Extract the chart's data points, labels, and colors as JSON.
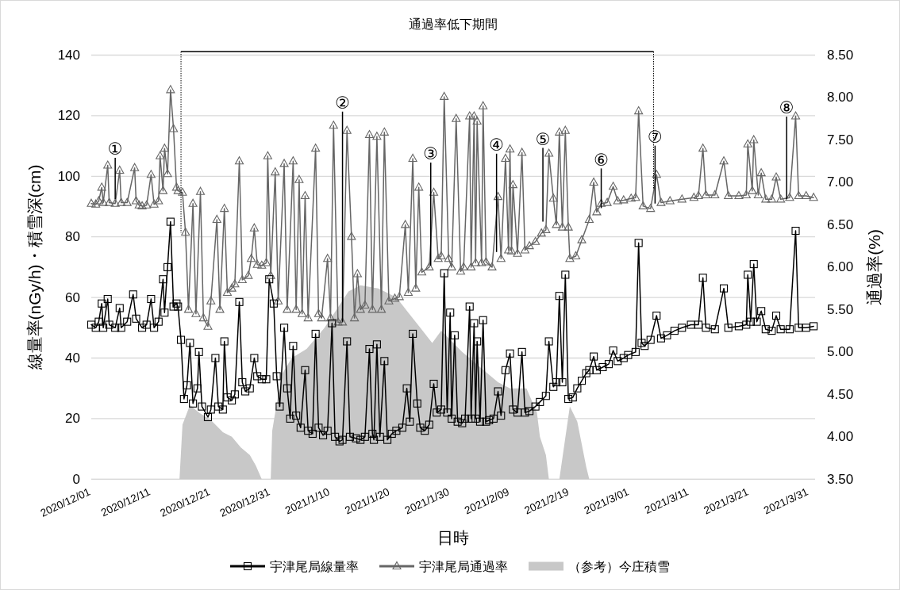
{
  "chart_data": {
    "type": "line",
    "title": "通過率低下期間",
    "xlabel": "日時",
    "ylabel": "線量率(nGy/h)・積雪深(cm)",
    "y2label": "通過率(%)",
    "xlim": [
      "2020-12-01",
      "2021-04-01"
    ],
    "xticks": [
      {
        "value": "2020-12-01",
        "label": "2020/12/01"
      },
      {
        "value": "2020-12-11",
        "label": "2020/12/11"
      },
      {
        "value": "2020-12-21",
        "label": "2020/12/21"
      },
      {
        "value": "2020-12-31",
        "label": "2020/12/31"
      },
      {
        "value": "2021-01-10",
        "label": "2021/1/10"
      },
      {
        "value": "2021-01-20",
        "label": "2021/1/20"
      },
      {
        "value": "2021-01-30",
        "label": "2021/1/30"
      },
      {
        "value": "2021-02-09",
        "label": "2021/2/09"
      },
      {
        "value": "2021-02-19",
        "label": "2021/2/19"
      },
      {
        "value": "2021-03-01",
        "label": "2021/3/01"
      },
      {
        "value": "2021-03-11",
        "label": "2021/3/11"
      },
      {
        "value": "2021-03-21",
        "label": "2021/3/21"
      },
      {
        "value": "2021-03-31",
        "label": "2021/3/31"
      }
    ],
    "ylim": [
      0,
      140
    ],
    "yticks": [
      0,
      20,
      40,
      60,
      80,
      100,
      120,
      140
    ],
    "y2lim": [
      3.5,
      8.5
    ],
    "y2ticks": [
      {
        "value": 3.5,
        "label": "3.50"
      },
      {
        "value": 4,
        "label": "4.00"
      },
      {
        "value": 4.5,
        "label": "4.50"
      },
      {
        "value": 5,
        "label": "5.00"
      },
      {
        "value": 5.5,
        "label": "5.50"
      },
      {
        "value": 6,
        "label": "6.00"
      },
      {
        "value": 6.5,
        "label": "6.50"
      },
      {
        "value": 7,
        "label": "7.00"
      },
      {
        "value": 7.5,
        "label": "7.50"
      },
      {
        "value": 8,
        "label": "8.00"
      },
      {
        "value": 8.5,
        "label": "8.50"
      }
    ],
    "grid": "y",
    "legend": "bottom",
    "series": [
      {
        "name": "宇津尾局線量率",
        "type": "line",
        "color": "#000000",
        "marker": "square",
        "x": [
          "2020-12-01T00:00",
          "2020-12-01T18:00",
          "2020-12-02T06:00",
          "2020-12-02T18:00",
          "2020-12-03T00:00",
          "2020-12-03T18:00",
          "2020-12-04T00:00",
          "2020-12-05T00:00",
          "2020-12-05T18:00",
          "2020-12-06T00:00",
          "2020-12-07T00:00",
          "2020-12-08T00:00",
          "2020-12-08T12:00",
          "2020-12-09T12:00",
          "2020-12-10T06:00",
          "2020-12-11T00:00",
          "2020-12-11T12:00",
          "2020-12-12T06:00",
          "2020-12-13T00:00",
          "2020-12-13T06:00",
          "2020-12-13T18:00",
          "2020-12-14T06:00",
          "2020-12-14T18:00",
          "2020-12-15T06:00",
          "2020-12-15T12:00",
          "2020-12-16T00:00",
          "2020-12-16T12:00",
          "2020-12-17T00:00",
          "2020-12-17T12:00",
          "2020-12-18T00:00",
          "2020-12-18T18:00",
          "2020-12-19T00:00",
          "2020-12-19T12:00",
          "2020-12-20T12:00",
          "2020-12-21T00:00",
          "2020-12-21T18:00",
          "2020-12-22T06:00",
          "2020-12-23T00:00",
          "2020-12-23T06:00",
          "2020-12-23T18:00",
          "2020-12-24T12:00",
          "2020-12-25T00:00",
          "2020-12-25T18:00",
          "2020-12-26T06:00",
          "2020-12-26T18:00",
          "2020-12-27T12:00",
          "2020-12-28T06:00",
          "2020-12-28T18:00",
          "2020-12-29T12:00",
          "2020-12-30T06:00",
          "2020-12-30T18:00",
          "2020-12-31T12:00",
          "2021-01-01T00:00",
          "2021-01-01T12:00",
          "2021-01-02T06:00",
          "2021-01-02T18:00",
          "2021-01-03T06:00",
          "2021-01-03T18:00",
          "2021-01-04T06:00",
          "2021-01-05T00:00",
          "2021-01-05T18:00",
          "2021-01-06T06:00",
          "2021-01-07T00:00",
          "2021-01-07T12:00",
          "2021-01-08T00:00",
          "2021-01-08T18:00",
          "2021-01-09T12:00",
          "2021-01-10T06:00",
          "2021-01-10T18:00",
          "2021-01-11T12:00",
          "2021-01-12T00:00",
          "2021-01-12T18:00",
          "2021-01-13T06:00",
          "2021-01-14T06:00",
          "2021-01-15T00:00",
          "2021-01-15T18:00",
          "2021-01-16T12:00",
          "2021-01-17T00:00",
          "2021-01-17T06:00",
          "2021-01-17T18:00",
          "2021-01-18T06:00",
          "2021-01-19T00:00",
          "2021-01-19T12:00",
          "2021-01-20T06:00",
          "2021-01-21T00:00",
          "2021-01-22T00:00",
          "2021-01-22T18:00",
          "2021-01-23T06:00",
          "2021-01-23T18:00",
          "2021-01-24T12:00",
          "2021-01-25T00:00",
          "2021-01-25T18:00",
          "2021-01-26T12:00",
          "2021-01-27T06:00",
          "2021-01-27T18:00",
          "2021-01-28T12:00",
          "2021-01-29T00:00",
          "2021-01-29T12:00",
          "2021-01-30T00:00",
          "2021-01-30T06:00",
          "2021-01-30T18:00",
          "2021-01-31T06:00",
          "2021-02-01T00:00",
          "2021-02-01T12:00",
          "2021-02-02T06:00",
          "2021-02-02T12:00",
          "2021-02-03T00:00",
          "2021-02-03T06:00",
          "2021-02-03T12:00",
          "2021-02-04T00:00",
          "2021-02-04T12:00",
          "2021-02-05T00:00",
          "2021-02-05T12:00",
          "2021-02-06T06:00",
          "2021-02-07T00:00",
          "2021-02-07T12:00",
          "2021-02-08T06:00",
          "2021-02-09T00:00",
          "2021-02-09T12:00",
          "2021-02-10T06:00",
          "2021-02-11T00:00",
          "2021-02-11T12:00",
          "2021-02-12T06:00",
          "2021-02-13T06:00",
          "2021-02-14T00:00",
          "2021-02-15T00:00",
          "2021-02-15T12:00",
          "2021-02-16T06:00",
          "2021-02-16T18:00",
          "2021-02-17T06:00",
          "2021-02-17T18:00",
          "2021-02-18T06:00",
          "2021-02-18T18:00",
          "2021-02-19T12:00",
          "2021-02-20T06:00",
          "2021-02-21T00:00",
          "2021-02-21T18:00",
          "2021-02-22T06:00",
          "2021-02-23T00:00",
          "2021-02-23T12:00",
          "2021-02-24T12:00",
          "2021-02-25T12:00",
          "2021-02-26T06:00",
          "2021-02-27T00:00",
          "2021-02-28T00:00",
          "2021-02-28T18:00",
          "2021-03-02T00:00",
          "2021-03-02T12:00",
          "2021-03-03T00:00",
          "2021-03-03T12:00",
          "2021-03-04T12:00",
          "2021-03-05T12:00",
          "2021-03-06T06:00",
          "2021-03-07T06:00",
          "2021-03-08T12:00",
          "2021-03-09T18:00",
          "2021-03-11T06:00",
          "2021-03-12T12:00",
          "2021-03-13T06:00",
          "2021-03-13T18:00",
          "2021-03-15T06:00",
          "2021-03-16T18:00",
          "2021-03-17T12:00",
          "2021-03-19T06:00",
          "2021-03-20T12:00",
          "2021-03-20T18:00",
          "2021-03-21T06:00",
          "2021-03-21T18:00",
          "2021-03-22T06:00",
          "2021-03-23T00:00",
          "2021-03-23T18:00",
          "2021-03-24T18:00",
          "2021-03-25T12:00",
          "2021-03-26T06:00",
          "2021-03-27T18:00",
          "2021-03-28T18:00",
          "2021-03-29T06:00",
          "2021-03-30T12:00",
          "2021-03-31T18:00"
        ],
        "values": [
          51,
          50,
          52,
          58,
          50,
          59.5,
          51,
          50,
          56.5,
          50,
          52,
          61,
          53,
          50,
          51,
          59.5,
          50,
          52,
          66,
          55,
          70,
          85,
          57,
          58,
          57,
          46,
          26.5,
          31,
          45,
          25,
          30,
          42,
          24,
          20.5,
          23,
          40,
          24,
          23,
          45.5,
          27,
          26,
          28,
          58.5,
          32,
          29,
          30,
          40,
          34,
          33,
          33,
          66,
          58,
          34,
          24,
          50,
          30,
          20,
          44,
          21,
          17,
          36,
          16,
          15,
          48,
          17,
          14.5,
          16,
          51.5,
          14,
          12.5,
          13,
          45.5,
          14,
          13.5,
          13,
          14,
          43,
          15,
          13,
          44.5,
          14,
          39,
          13,
          15,
          16,
          17,
          30,
          19,
          48,
          25,
          17,
          16,
          18,
          31.5,
          22,
          23,
          68,
          22,
          55,
          20,
          47.5,
          19,
          18.5,
          20,
          57,
          20,
          51.5,
          20,
          45.5,
          19,
          52.5,
          19,
          19.5,
          20,
          29,
          21,
          36,
          41.5,
          23,
          22,
          42,
          22,
          22.5,
          24,
          25.5,
          27.5,
          45.5,
          30.5,
          32,
          60.5,
          32,
          67.5,
          26.5,
          27,
          30,
          32.5,
          35,
          36,
          40.5,
          36,
          37,
          38,
          42.5,
          39,
          40,
          41,
          42,
          78,
          45,
          44,
          46,
          54,
          46.5,
          47.5,
          49,
          50,
          51,
          51,
          66.5,
          50,
          49.5,
          63,
          50,
          50.5,
          51,
          67.5,
          52,
          71,
          52,
          55.5,
          49.5,
          49,
          54,
          49.5,
          49.5,
          82,
          50,
          50,
          50.5
        ]
      },
      {
        "name": "宇津尾局通過率",
        "type": "line",
        "color": "#666666",
        "marker": "triangle",
        "axis": "y2",
        "x": [
          "2020-12-01T00:00",
          "2020-12-01T18:00",
          "2020-12-02T06:00",
          "2020-12-02T18:00",
          "2020-12-03T00:00",
          "2020-12-03T18:00",
          "2020-12-04T00:00",
          "2020-12-05T00:00",
          "2020-12-05T18:00",
          "2020-12-06T00:00",
          "2020-12-07T00:00",
          "2020-12-08T06:00",
          "2020-12-08T12:00",
          "2020-12-09T00:00",
          "2020-12-09T12:00",
          "2020-12-10T06:00",
          "2020-12-11T00:00",
          "2020-12-11T12:00",
          "2020-12-12T06:00",
          "2020-12-12T12:00",
          "2020-12-13T00:00",
          "2020-12-13T06:00",
          "2020-12-13T18:00",
          "2020-12-14T06:00",
          "2020-12-14T18:00",
          "2020-12-15T06:00",
          "2020-12-15T12:00",
          "2020-12-16T06:00",
          "2020-12-16T18:00",
          "2020-12-17T06:00",
          "2020-12-18T00:00",
          "2020-12-18T12:00",
          "2020-12-19T06:00",
          "2020-12-19T18:00",
          "2020-12-20T12:00",
          "2020-12-21T00:00",
          "2020-12-22T00:00",
          "2020-12-22T12:00",
          "2020-12-23T06:00",
          "2020-12-23T18:00",
          "2020-12-24T12:00",
          "2020-12-25T00:00",
          "2020-12-25T18:00",
          "2020-12-26T06:00",
          "2020-12-27T06:00",
          "2020-12-27T18:00",
          "2020-12-28T06:00",
          "2020-12-28T18:00",
          "2020-12-29T12:00",
          "2020-12-30T06:00",
          "2020-12-30T12:00",
          "2020-12-31T00:00",
          "2020-12-31T18:00",
          "2021-01-01T06:00",
          "2021-01-02T06:00",
          "2021-01-02T18:00",
          "2021-01-03T18:00",
          "2021-01-04T06:00",
          "2021-01-04T18:00",
          "2021-01-05T06:00",
          "2021-01-05T18:00",
          "2021-01-06T06:00",
          "2021-01-07T12:00",
          "2021-01-08T00:00",
          "2021-01-08T12:00",
          "2021-01-09T12:00",
          "2021-01-10T00:00",
          "2021-01-10T12:00",
          "2021-01-11T06:00",
          "2021-01-12T00:00",
          "2021-01-12T18:00",
          "2021-01-13T12:00",
          "2021-01-14T00:00",
          "2021-01-14T12:00",
          "2021-01-15T00:00",
          "2021-01-15T18:00",
          "2021-01-16T12:00",
          "2021-01-17T00:00",
          "2021-01-17T18:00",
          "2021-01-18T12:00",
          "2021-01-19T00:00",
          "2021-01-19T18:00",
          "2021-01-20T18:00",
          "2021-01-21T12:00",
          "2021-01-22T12:00",
          "2021-01-23T00:00",
          "2021-01-23T18:00",
          "2021-01-24T06:00",
          "2021-01-24T18:00",
          "2021-01-25T06:00",
          "2021-01-26T12:00",
          "2021-01-27T06:00",
          "2021-01-28T00:00",
          "2021-01-28T12:00",
          "2021-01-29T00:00",
          "2021-01-29T18:00",
          "2021-01-30T06:00",
          "2021-01-31T00:00",
          "2021-01-31T18:00",
          "2021-02-01T06:00",
          "2021-02-02T06:00",
          "2021-02-02T12:00",
          "2021-02-03T00:00",
          "2021-02-03T06:00",
          "2021-02-03T12:00",
          "2021-02-04T06:00",
          "2021-02-04T12:00",
          "2021-02-05T00:00",
          "2021-02-06T00:00",
          "2021-02-07T00:00",
          "2021-02-07T12:00",
          "2021-02-08T06:00",
          "2021-02-08T18:00",
          "2021-02-09T00:00",
          "2021-02-09T06:00",
          "2021-02-09T12:00",
          "2021-02-10T06:00",
          "2021-02-11T00:00",
          "2021-02-11T12:00",
          "2021-02-12T06:00",
          "2021-02-13T06:00",
          "2021-02-14T06:00",
          "2021-02-15T00:00",
          "2021-02-15T12:00",
          "2021-02-16T06:00",
          "2021-02-16T18:00",
          "2021-02-17T06:00",
          "2021-02-17T18:00",
          "2021-02-18T06:00",
          "2021-02-18T18:00",
          "2021-02-19T00:00",
          "2021-02-20T00:00",
          "2021-02-21T00:00",
          "2021-02-22T06:00",
          "2021-02-23T00:00",
          "2021-02-23T12:00",
          "2021-02-24T06:00",
          "2021-02-25T06:00",
          "2021-02-26T06:00",
          "2021-02-27T00:00",
          "2021-02-28T00:00",
          "2021-03-01T06:00",
          "2021-03-02T00:00",
          "2021-03-02T12:00",
          "2021-03-03T06:00",
          "2021-03-04T12:00",
          "2021-03-05T12:00",
          "2021-03-06T06:00",
          "2021-03-07T18:00",
          "2021-03-09T18:00",
          "2021-03-11T18:00",
          "2021-03-12T12:00",
          "2021-03-13T06:00",
          "2021-03-13T18:00",
          "2021-03-15T06:00",
          "2021-03-16T18:00",
          "2021-03-17T12:00",
          "2021-03-19T06:00",
          "2021-03-20T12:00",
          "2021-03-20T18:00",
          "2021-03-21T12:00",
          "2021-03-21T18:00",
          "2021-03-22T12:00",
          "2021-03-23T00:00",
          "2021-03-23T18:00",
          "2021-03-24T18:00",
          "2021-03-25T12:00",
          "2021-03-26T06:00",
          "2021-03-27T18:00",
          "2021-03-28T18:00",
          "2021-03-29T06:00",
          "2021-03-30T12:00",
          "2021-03-31T18:00"
        ],
        "values": [
          6.75,
          6.74,
          6.78,
          6.94,
          6.76,
          7.2,
          6.76,
          6.75,
          7.14,
          6.76,
          6.76,
          7.17,
          6.78,
          6.73,
          6.72,
          6.73,
          7.09,
          6.74,
          6.78,
          7.31,
          6.9,
          7.4,
          7.1,
          8.09,
          7.63,
          6.94,
          6.9,
          6.88,
          6.41,
          5.5,
          6.75,
          5.45,
          6.89,
          5.4,
          5.3,
          5.6,
          6.56,
          5.5,
          6.69,
          5.7,
          5.75,
          5.8,
          7.25,
          5.85,
          5.9,
          6.1,
          6.46,
          6.03,
          6.02,
          6.05,
          7.31,
          5.9,
          7.12,
          5.6,
          7.22,
          5.5,
          7.25,
          5.5,
          7.03,
          5.45,
          6.84,
          5.4,
          7.4,
          5.45,
          5.4,
          6.1,
          5.4,
          7.67,
          5.35,
          5.35,
          7.61,
          6.36,
          5.4,
          5.92,
          5.5,
          5.55,
          7.56,
          5.5,
          7.54,
          5.5,
          7.59,
          5.6,
          5.63,
          5.65,
          6.5,
          5.7,
          7.28,
          5.75,
          6.94,
          5.94,
          6.0,
          6.88,
          6.1,
          6.13,
          8.01,
          6.1,
          6.0,
          7.75,
          5.95,
          6.0,
          7.78,
          6.0,
          7.78,
          6.05,
          7.72,
          6.05,
          7.9,
          6.06,
          6.0,
          6.83,
          6.1,
          7.28,
          6.2,
          7.39,
          6.19,
          6.97,
          6.16,
          7.35,
          6.2,
          6.25,
          6.3,
          6.4,
          6.44,
          7.34,
          6.81,
          6.5,
          7.59,
          6.47,
          7.61,
          6.47,
          6.1,
          6.13,
          6.32,
          6.56,
          7.0,
          6.65,
          6.75,
          6.76,
          6.95,
          6.78,
          6.79,
          6.81,
          6.82,
          7.84,
          6.72,
          6.69,
          7.09,
          6.76,
          6.78,
          6.8,
          6.82,
          6.84,
          7.4,
          6.85,
          6.85,
          7.25,
          6.84,
          6.84,
          6.85,
          7.45,
          6.9,
          7.5,
          6.85,
          7.11,
          6.8,
          6.8,
          7.06,
          6.8,
          6.82,
          7.78,
          6.84,
          6.84,
          6.82
        ]
      },
      {
        "name": "（参考）今庄積雪",
        "type": "area",
        "color": "#c8c8c8",
        "x": [
          "2020-12-01T00:00",
          "2020-12-15T18:00",
          "2020-12-16T06:00",
          "2020-12-17T12:00",
          "2020-12-19T00:00",
          "2020-12-21T00:00",
          "2020-12-23T00:00",
          "2020-12-24T12:00",
          "2020-12-26T00:00",
          "2020-12-27T12:00",
          "2020-12-28T12:00",
          "2020-12-29T12:00",
          "2020-12-31T00:00",
          "2020-12-31T06:00",
          "2021-01-01T00:00",
          "2021-01-02T00:00",
          "2021-01-03T12:00",
          "2021-01-06T00:00",
          "2021-01-09T00:00",
          "2021-01-11T00:00",
          "2021-01-13T00:00",
          "2021-01-15T00:00",
          "2021-01-18T00:00",
          "2021-01-21T00:00",
          "2021-01-23T00:00",
          "2021-01-25T00:00",
          "2021-01-27T00:00",
          "2021-01-28T12:00",
          "2021-01-30T00:00",
          "2021-02-01T00:00",
          "2021-02-04T00:00",
          "2021-02-07T00:00",
          "2021-02-09T00:00",
          "2021-02-11T18:00",
          "2021-02-13T12:00",
          "2021-02-14T00:00",
          "2021-02-15T00:00",
          "2021-02-15T12:00",
          "2021-02-17T06:00",
          "2021-02-19T00:00",
          "2021-02-20T06:00",
          "2021-02-21T18:00",
          "2021-02-22T06:00",
          "2021-03-31T18:00"
        ],
        "values": [
          0,
          0,
          18,
          24.5,
          22,
          19.5,
          15.5,
          14,
          10.5,
          8,
          4.5,
          0,
          0,
          16,
          25,
          35,
          40,
          43,
          50,
          56,
          62,
          64,
          63,
          60,
          55,
          50,
          45,
          49,
          46,
          42,
          37,
          32,
          30,
          30,
          22,
          14,
          8,
          0,
          0,
          24,
          19,
          4,
          0,
          0
        ]
      }
    ],
    "ref_lines": [
      {
        "axis": "x",
        "value": "2020-12-16",
        "color": "#000000",
        "line_style": "dotted"
      },
      {
        "axis": "x",
        "value": "2021-03-05",
        "color": "#000000",
        "line_style": "dotted"
      }
    ],
    "annotations": [
      {
        "text": "①",
        "x": "2020-12-05",
        "y": 92.5
      },
      {
        "text": "②",
        "x": "2021-01-12",
        "y": 52
      },
      {
        "text": "③",
        "x": "2021-01-26T18:00",
        "y": 70.5
      },
      {
        "text": "④",
        "x": "2021-02-06T18:00",
        "y": 75
      },
      {
        "text": "⑤",
        "x": "2021-02-14T12:00",
        "y": 85
      },
      {
        "text": "⑥",
        "x": "2021-02-24T06:00",
        "y": 89.5
      },
      {
        "text": "⑦",
        "x": "2021-03-05T06:00",
        "y": 91
      },
      {
        "text": "⑧",
        "x": "2021-03-27T06:00",
        "y": 92.5
      }
    ]
  }
}
